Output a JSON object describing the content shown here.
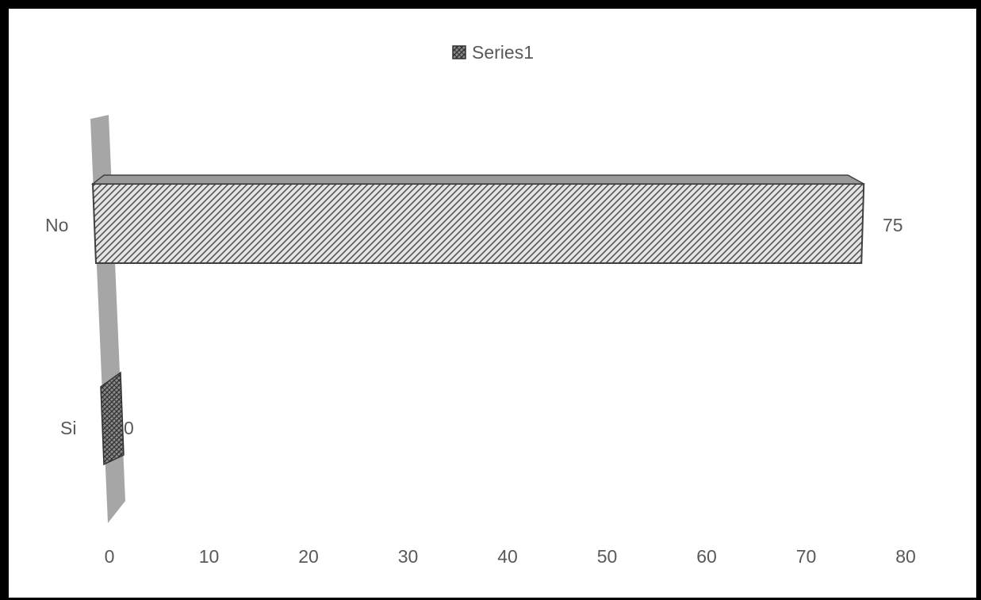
{
  "chart_data": {
    "type": "bar",
    "orientation": "horizontal",
    "style": "3d-hatched",
    "categories": [
      "No",
      "Si"
    ],
    "series": [
      {
        "name": "Series1",
        "values": [
          75,
          0
        ]
      }
    ],
    "data_labels": [
      "75",
      "0"
    ],
    "x_ticks": [
      "0",
      "10",
      "20",
      "30",
      "40",
      "50",
      "60",
      "70",
      "80"
    ],
    "xlim": [
      0,
      80
    ],
    "title": "",
    "xlabel": "",
    "ylabel": "",
    "grid": false,
    "legend_position": "top",
    "colors": {
      "bar_fill": "#dcdcdc",
      "bar_stroke": "#404040",
      "wall": "#a6a6a6",
      "text": "#595959"
    }
  }
}
